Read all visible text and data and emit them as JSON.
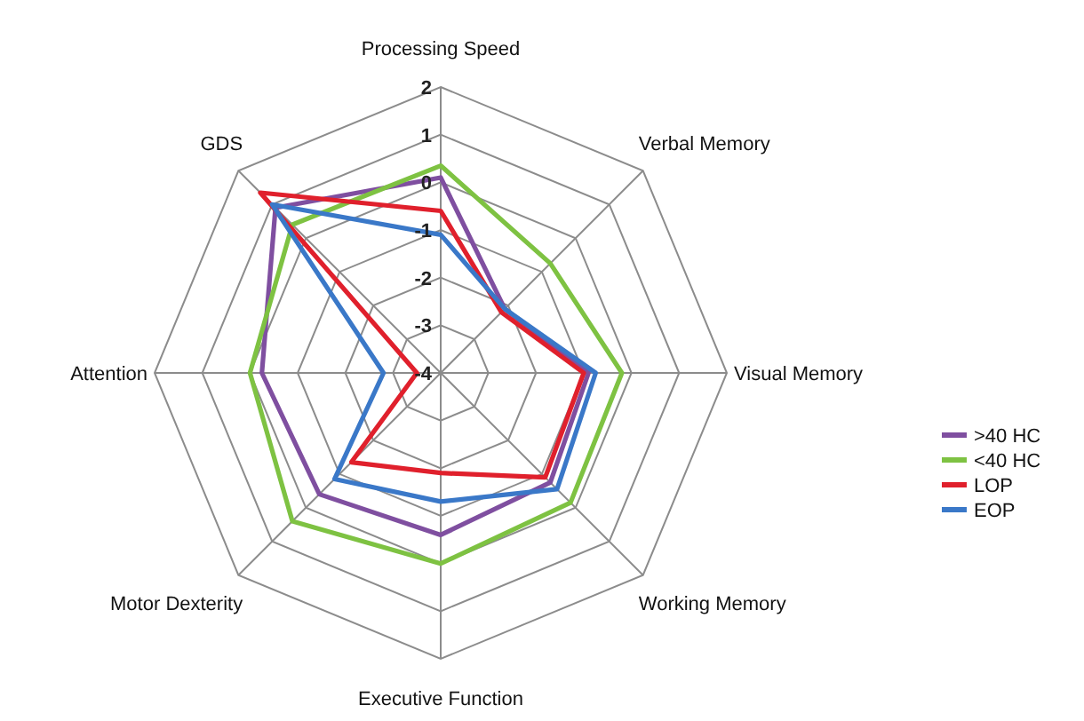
{
  "chart_data": {
    "type": "radar",
    "categories": [
      "Processing Speed",
      "Verbal Memory",
      "Visual Memory",
      "Working Memory",
      "Executive Function",
      "Motor Dexterity",
      "Attention",
      "GDS"
    ],
    "ylim": [
      -4,
      2
    ],
    "yticks": [
      -4,
      -3,
      -2,
      -1,
      0,
      1,
      2
    ],
    "grid": true,
    "legend": "right",
    "marker": "none",
    "series": [
      {
        "name": ">40 HC",
        "color": "#7f4fa0",
        "values": [
          0.1,
          -2.1,
          -0.9,
          -0.75,
          -0.6,
          -0.4,
          -0.25,
          0.9
        ]
      },
      {
        "name": "<40 HC",
        "color": "#7ec242",
        "values": [
          0.35,
          -0.75,
          -0.2,
          -0.15,
          0.0,
          0.4,
          0.0,
          0.4
        ]
      },
      {
        "name": "LOP",
        "color": "#e0202c",
        "values": [
          -0.6,
          -2.2,
          -1.0,
          -0.9,
          -1.9,
          -1.35,
          -3.5,
          1.35
        ]
      },
      {
        "name": "EOP",
        "color": "#3a78c8",
        "values": [
          -1.1,
          -2.1,
          -0.75,
          -0.55,
          -1.3,
          -0.85,
          -2.8,
          1.0
        ]
      }
    ]
  }
}
